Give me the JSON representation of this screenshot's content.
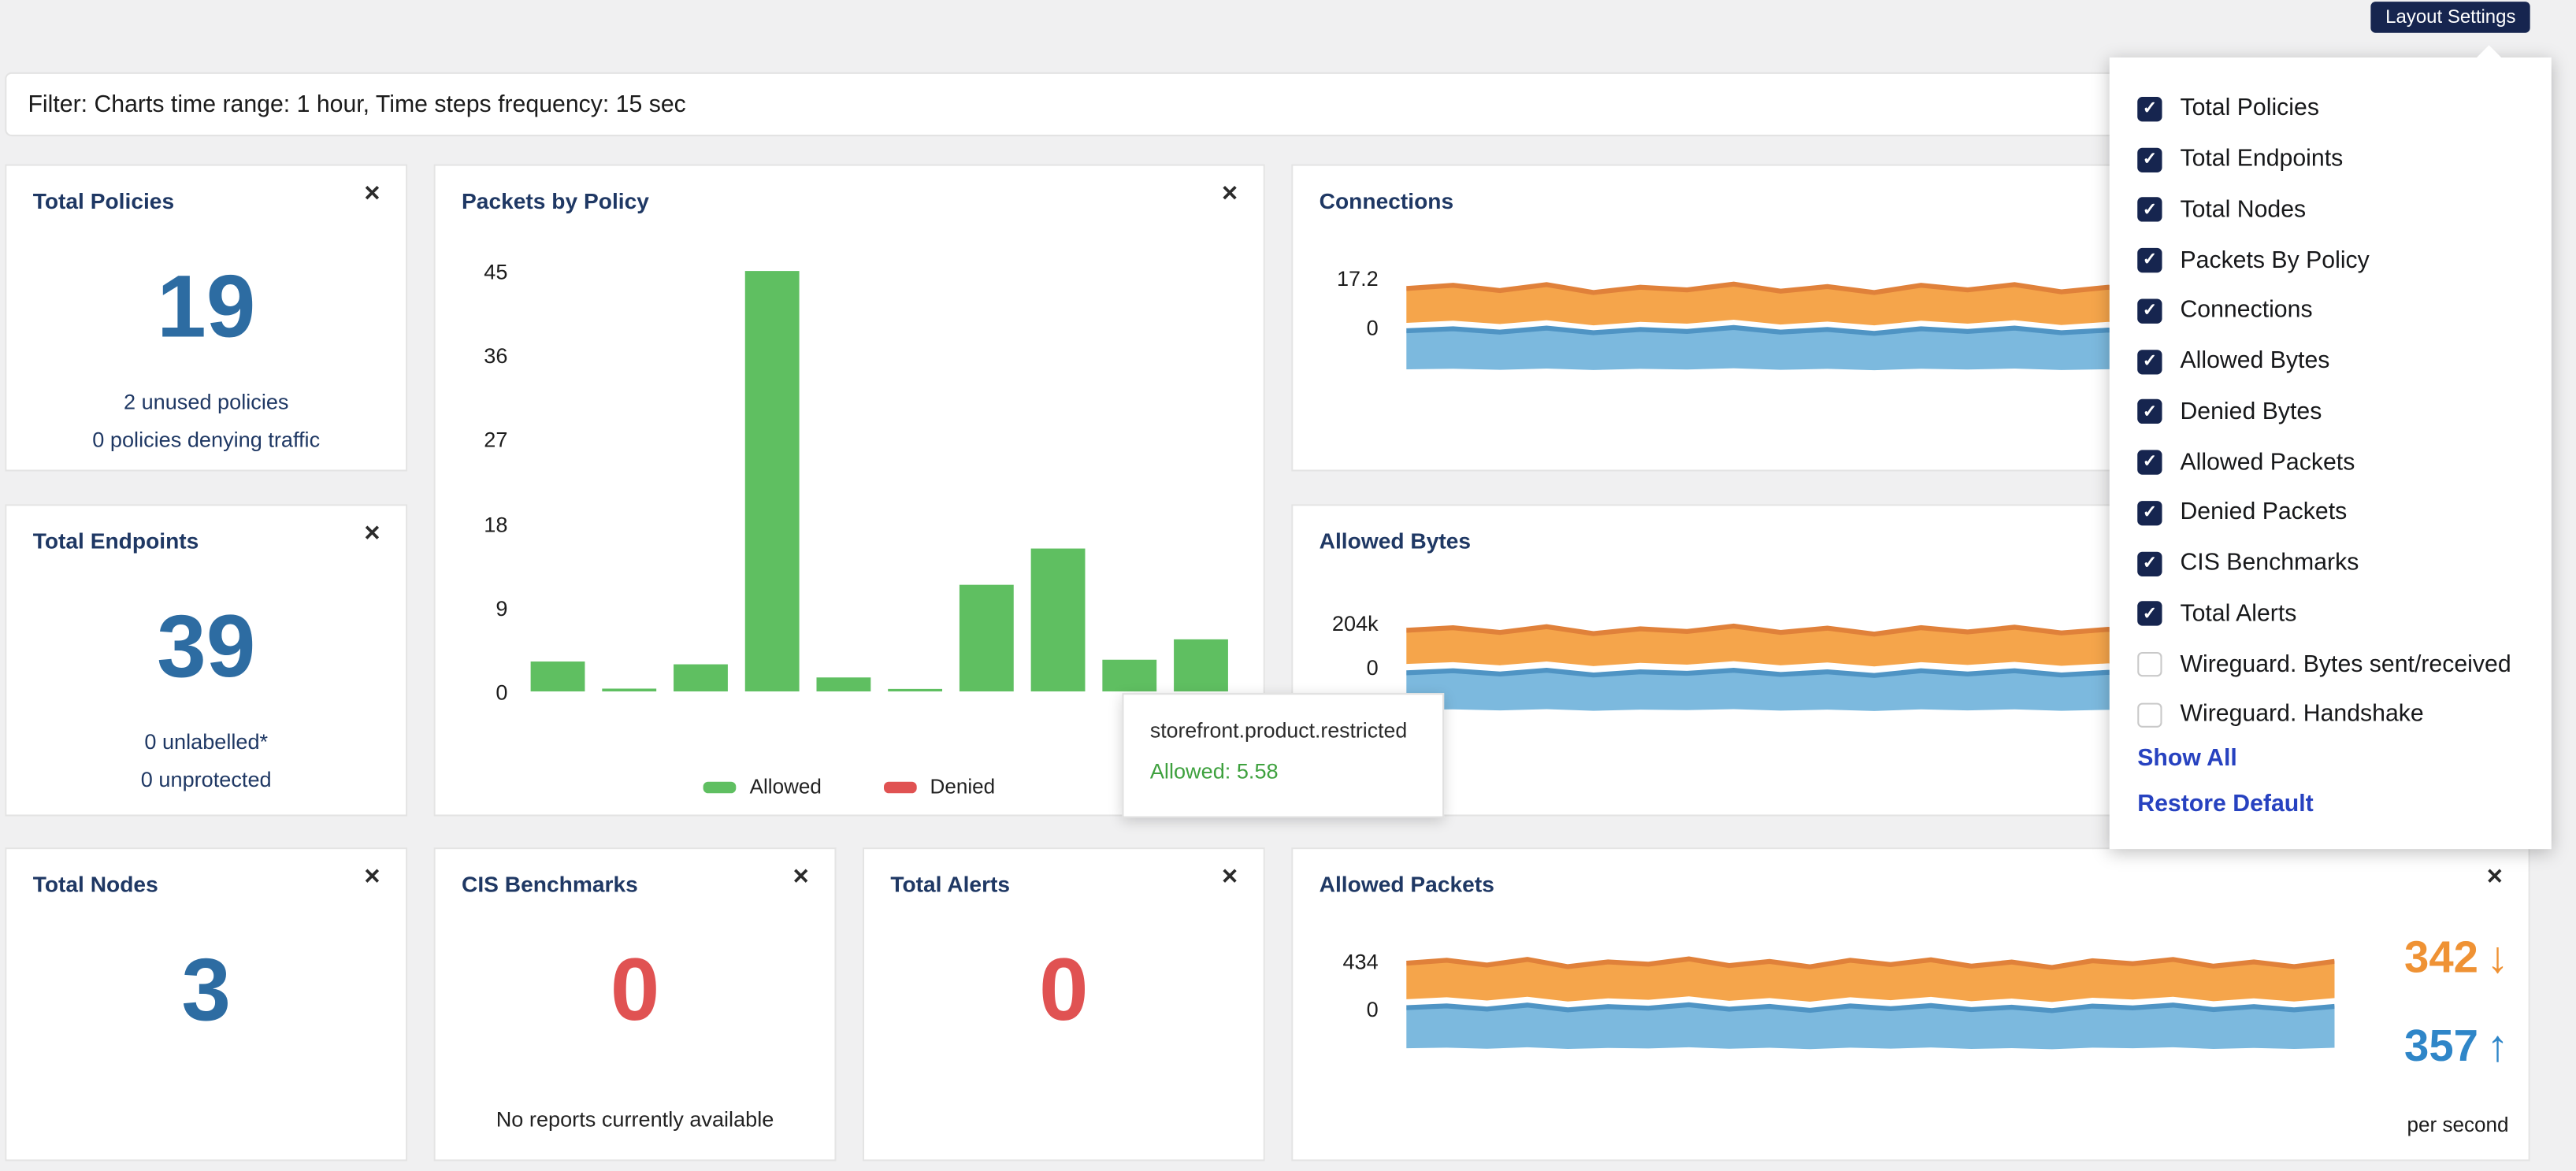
{
  "header": {
    "layout_settings_label": "Layout Settings"
  },
  "filter": {
    "text": "Filter: Charts time range: 1 hour, Time steps frequency: 15 sec"
  },
  "ui": {
    "close_glyph": "✕",
    "down_arrow": "↓",
    "up_arrow": "↑",
    "check_glyph": "✓"
  },
  "colors": {
    "navy": "#16254f",
    "title_navy": "#1f3864",
    "stat_blue": "#2d6ca2",
    "stat_red": "#e05252",
    "bar_green": "#5fbf61",
    "denied_red": "#e05252",
    "band_orange": "#f5a54b",
    "band_orange_edge": "#e0813a",
    "band_blue": "#7cb9de",
    "band_blue_edge": "#4f94c4",
    "link_blue": "#2742c0"
  },
  "dropdown": {
    "items": [
      {
        "label": "Total Policies",
        "checked": true
      },
      {
        "label": "Total Endpoints",
        "checked": true
      },
      {
        "label": "Total Nodes",
        "checked": true
      },
      {
        "label": "Packets By Policy",
        "checked": true
      },
      {
        "label": "Connections",
        "checked": true
      },
      {
        "label": "Allowed Bytes",
        "checked": true
      },
      {
        "label": "Denied Bytes",
        "checked": true
      },
      {
        "label": "Allowed Packets",
        "checked": true
      },
      {
        "label": "Denied Packets",
        "checked": true
      },
      {
        "label": "CIS Benchmarks",
        "checked": true
      },
      {
        "label": "Total Alerts",
        "checked": true
      },
      {
        "label": "Wireguard. Bytes sent/received",
        "checked": false
      },
      {
        "label": "Wireguard. Handshake",
        "checked": false
      }
    ],
    "show_all": "Show All",
    "restore_default": "Restore Default"
  },
  "cards": {
    "total_policies": {
      "title": "Total Policies",
      "value": "19",
      "line1": "2 unused policies",
      "line2": "0 policies denying traffic"
    },
    "packets_by_policy": {
      "title": "Packets by Policy"
    },
    "connections": {
      "title": "Connections"
    },
    "total_endpoints": {
      "title": "Total Endpoints",
      "value": "39",
      "line1": "0 unlabelled*",
      "line2": "0 unprotected"
    },
    "allowed_bytes": {
      "title": "Allowed Bytes"
    },
    "total_nodes": {
      "title": "Total Nodes",
      "value": "3"
    },
    "cis_benchmarks": {
      "title": "CIS Benchmarks",
      "value": "0",
      "note": "No reports currently available"
    },
    "total_alerts": {
      "title": "Total Alerts",
      "value": "0"
    },
    "allowed_packets": {
      "title": "Allowed Packets",
      "down_value": "342",
      "up_value": "357",
      "unit": "per second"
    }
  },
  "tooltip": {
    "title": "storefront.product.restricted",
    "value": "Allowed: 5.58"
  },
  "chart_data": [
    {
      "id": "packets_by_policy",
      "type": "bar",
      "title": "Packets by Policy",
      "ylim": [
        0,
        45
      ],
      "yticks": [
        0,
        9,
        18,
        27,
        36,
        45
      ],
      "categories": [
        null,
        null,
        null,
        null,
        null,
        null,
        null,
        null,
        null,
        "storefront.product.restricted"
      ],
      "series": [
        {
          "name": "Allowed",
          "color": "#5fbf61",
          "values": [
            3.2,
            0.3,
            2.9,
            45,
            1.5,
            0.2,
            11.4,
            15.3,
            3.4,
            5.58
          ]
        }
      ],
      "legend": [
        {
          "label": "Allowed",
          "color": "#5fbf61"
        },
        {
          "label": "Denied",
          "color": "#e05252"
        }
      ],
      "hover": {
        "index": 9,
        "label": "storefront.product.restricted",
        "value": "Allowed: 5.58"
      }
    },
    {
      "id": "connections",
      "type": "area",
      "title": "Connections",
      "ylim": [
        0,
        17.2
      ],
      "yticks_labels": [
        "17.2",
        "0"
      ],
      "series": [
        {
          "name": "connections-band-orange",
          "color": "#f5a54b",
          "edge": "#e0813a",
          "values": [
            15.5,
            16.0,
            15.2,
            16.1,
            14.9,
            15.7,
            15.3,
            16.2,
            15.1,
            15.8,
            14.9,
            16.0,
            15.3,
            16.1,
            15.0,
            15.7,
            14.8,
            15.9,
            15.4,
            16.1,
            15.0,
            15.7,
            14.9,
            15.8
          ]
        },
        {
          "name": "connections-band-blue",
          "color": "#7cb9de",
          "edge": "#4f94c4",
          "values": [
            9.0,
            9.3,
            8.8,
            9.4,
            8.7,
            9.2,
            8.9,
            9.5,
            8.8,
            9.2,
            8.6,
            9.3,
            8.9,
            9.4,
            8.7,
            9.1,
            8.6,
            9.3,
            9.0,
            9.4,
            8.7,
            9.2,
            8.7,
            9.2
          ]
        }
      ]
    },
    {
      "id": "allowed_bytes",
      "type": "area",
      "title": "Allowed Bytes",
      "y_unit": "k",
      "ylim": [
        0,
        204
      ],
      "yticks_labels": [
        "204k",
        "0"
      ],
      "series": [
        {
          "name": "bytes-band-orange",
          "color": "#f5a54b",
          "edge": "#e0813a",
          "values": [
            186,
            191,
            182,
            193,
            180,
            189,
            184,
            194,
            182,
            190,
            179,
            191,
            183,
            192,
            181,
            188,
            178,
            191,
            185,
            193,
            181,
            189,
            180,
            190
          ]
        },
        {
          "name": "bytes-band-blue",
          "color": "#7cb9de",
          "edge": "#4f94c4",
          "values": [
            106,
            110,
            104,
            111,
            102,
            108,
            105,
            111,
            103,
            108,
            101,
            110,
            104,
            110,
            102,
            107,
            101,
            109,
            105,
            111,
            102,
            108,
            102,
            108
          ]
        }
      ]
    },
    {
      "id": "allowed_packets",
      "type": "area",
      "title": "Allowed Packets",
      "ylim": [
        0,
        434
      ],
      "yticks_labels": [
        "434",
        "0"
      ],
      "per_second_down": 342,
      "per_second_up": 357,
      "series": [
        {
          "name": "packets-band-orange",
          "color": "#f5a54b",
          "edge": "#e0813a",
          "values": [
            400,
            411,
            393,
            414,
            387,
            405,
            396,
            416,
            391,
            407,
            386,
            411,
            395,
            413,
            389,
            404,
            384,
            409,
            398,
            414,
            389,
            405,
            387,
            407
          ]
        },
        {
          "name": "packets-band-blue",
          "color": "#7cb9de",
          "edge": "#4f94c4",
          "values": [
            232,
            239,
            227,
            242,
            224,
            236,
            230,
            243,
            226,
            237,
            222,
            239,
            228,
            240,
            225,
            234,
            221,
            238,
            231,
            242,
            225,
            236,
            224,
            237
          ]
        }
      ]
    }
  ]
}
